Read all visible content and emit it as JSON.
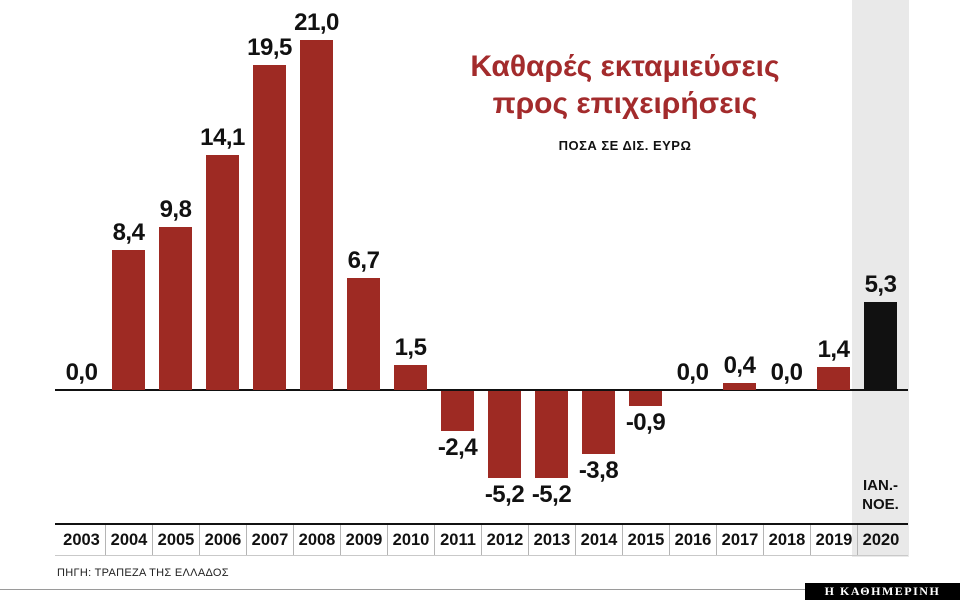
{
  "title": {
    "line1": "Καθαρές εκταμιεύσεις",
    "line2": "προς επιχειρήσεις"
  },
  "subtitle": "ΠΟΣΑ ΣΕ ΔΙΣ. ΕΥΡΩ",
  "source": "ΠΗΓΗ: ΤΡΑΠΕΖΑ ΤΗΣ ΕΛΛΑΔΟΣ",
  "brand": "Η ΚΑΘΗΜΕΡΙΝΗ",
  "colors": {
    "bar": "#9e2a23",
    "highlight_bar": "#111111",
    "highlight_bg": "#e9e9e9",
    "title": "#a32b2c"
  },
  "chart_data": {
    "type": "bar",
    "title": "Καθαρές εκταμιεύσεις προς επιχειρήσεις",
    "subtitle": "ΠΟΣΑ ΣΕ ΔΙΣ. ΕΥΡΩ",
    "categories": [
      "2003",
      "2004",
      "2005",
      "2006",
      "2007",
      "2008",
      "2009",
      "2010",
      "2011",
      "2012",
      "2013",
      "2014",
      "2015",
      "2016",
      "2017",
      "2018",
      "2019",
      "2020"
    ],
    "values": [
      0.0,
      8.4,
      9.8,
      14.1,
      19.5,
      21.0,
      6.7,
      1.5,
      -2.4,
      -5.2,
      -5.2,
      -3.8,
      -0.9,
      0.0,
      0.4,
      0.0,
      1.4,
      5.3
    ],
    "value_labels": [
      "0,0",
      "8,4",
      "9,8",
      "14,1",
      "19,5",
      "21,0",
      "6,7",
      "1,5",
      "-2,4",
      "-5,2",
      "-5,2",
      "-3,8",
      "-0,9",
      "0,0",
      "0,4",
      "0,0",
      "1,4",
      "5,3"
    ],
    "ylim": [
      -6,
      21
    ],
    "grid": false,
    "legend": false,
    "highlight_index": 17,
    "highlight_label": "ΙΑΝ.-\nΝΟΕ.",
    "source": "ΠΗΓΗ: ΤΡΑΠΕΖΑ ΤΗΣ ΕΛΛΑΔΟΣ"
  }
}
